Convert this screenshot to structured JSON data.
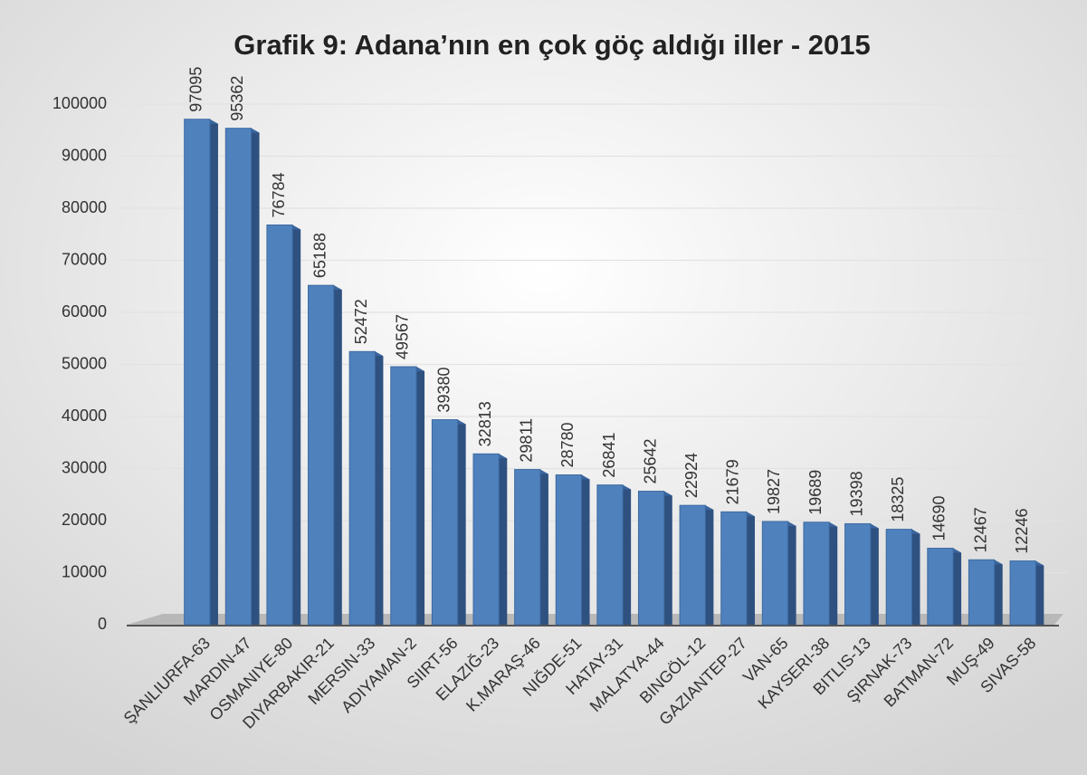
{
  "chart_data": {
    "type": "bar",
    "title": "Grafik 9: Adana’nın en çok göç aldığı iller - 2015",
    "categories": [
      "ŞANLIURFA-63",
      "MARDIN-47",
      "OSMANIYE-80",
      "DIYARBAKIR-21",
      "MERSIN-33",
      "ADIYAMAN-2",
      "SIIRT-56",
      "ELAZIĞ-23",
      "K.MARAŞ-46",
      "NIĞDE-51",
      "HATAY-31",
      "MALATYA-44",
      "BINGÖL-12",
      "GAZIANTEP-27",
      "VAN-65",
      "KAYSERI-38",
      "BITLIS-13",
      "ŞIRNAK-73",
      "BATMAN-72",
      "MUŞ-49",
      "SIVAS-58"
    ],
    "values": [
      97095,
      95362,
      76784,
      65188,
      52472,
      49567,
      39380,
      32813,
      29811,
      28780,
      26841,
      25642,
      22924,
      21679,
      19827,
      19689,
      19398,
      18325,
      14690,
      12467,
      12246
    ],
    "color": "#4f81bd",
    "ylim": [
      0,
      100000
    ],
    "yticks": [
      0,
      10000,
      20000,
      30000,
      40000,
      50000,
      60000,
      70000,
      80000,
      90000,
      100000
    ],
    "grid": true
  }
}
